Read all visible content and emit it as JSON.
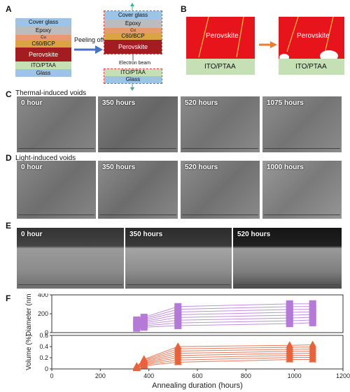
{
  "panels": {
    "a_label": "A",
    "b_label": "B",
    "c_label": "C",
    "d_label": "D",
    "e_label": "E",
    "f_label": "F"
  },
  "panel_a": {
    "layers": [
      "Cover glass",
      "Epoxy",
      "Cu",
      "C60/BCP",
      "Perovskite",
      "ITO/PTAA",
      "Glass"
    ],
    "arrow_label": "Peeling off",
    "electron_label": "Electron beam",
    "colors": {
      "cover_glass": "#9dc3e6",
      "epoxy": "#bcbcbc",
      "cu": "#e89a6f",
      "c60": "#d9a441",
      "perovskite": "#a21c20",
      "ito": "#c5e0b4",
      "glass": "#9dc3e6",
      "arrow": "#4472c4",
      "green_arrow": "#3fae8c"
    }
  },
  "panel_b": {
    "left_top": "Perovskite",
    "left_bottom": "ITO/PTAA",
    "right_top": "Perovskite",
    "right_bottom": "ITO/PTAA",
    "colors": {
      "red": "#e8141c",
      "green": "#c5e0b4",
      "arrow": "#ed7d31"
    }
  },
  "panel_c": {
    "title": "Thermal-induced voids",
    "times": [
      "0 hour",
      "350 hours",
      "520 hours",
      "1075 hours"
    ]
  },
  "panel_d": {
    "title": "Light-induced voids",
    "times": [
      "0 hour",
      "350 hours",
      "520 hours",
      "1000 hours"
    ]
  },
  "panel_e": {
    "times": [
      "0 hour",
      "350 hours",
      "520 hours"
    ]
  },
  "chart_data": [
    {
      "type": "scatter",
      "title": "",
      "xlabel": "",
      "ylabel": "Diameter (nm)",
      "xlim": [
        0,
        1200
      ],
      "ylim": [
        0,
        400
      ],
      "yticks": [
        0,
        200,
        400
      ],
      "color": "#b57ad8",
      "marker": "square",
      "x": [
        350,
        380,
        520,
        980,
        1075
      ],
      "series_ranges": [
        {
          "x": 350,
          "min": 40,
          "max": 140
        },
        {
          "x": 380,
          "min": 50,
          "max": 170
        },
        {
          "x": 520,
          "min": 60,
          "max": 290
        },
        {
          "x": 980,
          "min": 80,
          "max": 320
        },
        {
          "x": 1075,
          "min": 90,
          "max": 320
        }
      ]
    },
    {
      "type": "scatter",
      "title": "",
      "xlabel": "Annealing duration (hours)",
      "ylabel": "Volume (%)",
      "xlim": [
        0,
        1200
      ],
      "ylim": [
        0,
        0.6
      ],
      "yticks": [
        0.0,
        0.2,
        0.4,
        0.6
      ],
      "xticks": [
        0,
        200,
        400,
        600,
        800,
        1000,
        1200
      ],
      "color": "#e8623c",
      "marker": "triangle",
      "x": [
        350,
        380,
        520,
        980,
        1075
      ],
      "series_ranges": [
        {
          "x": 350,
          "min": 0.01,
          "max": 0.05
        },
        {
          "x": 380,
          "min": 0.05,
          "max": 0.18
        },
        {
          "x": 520,
          "min": 0.1,
          "max": 0.42
        },
        {
          "x": 980,
          "min": 0.15,
          "max": 0.44
        },
        {
          "x": 1075,
          "min": 0.15,
          "max": 0.45
        }
      ]
    }
  ]
}
